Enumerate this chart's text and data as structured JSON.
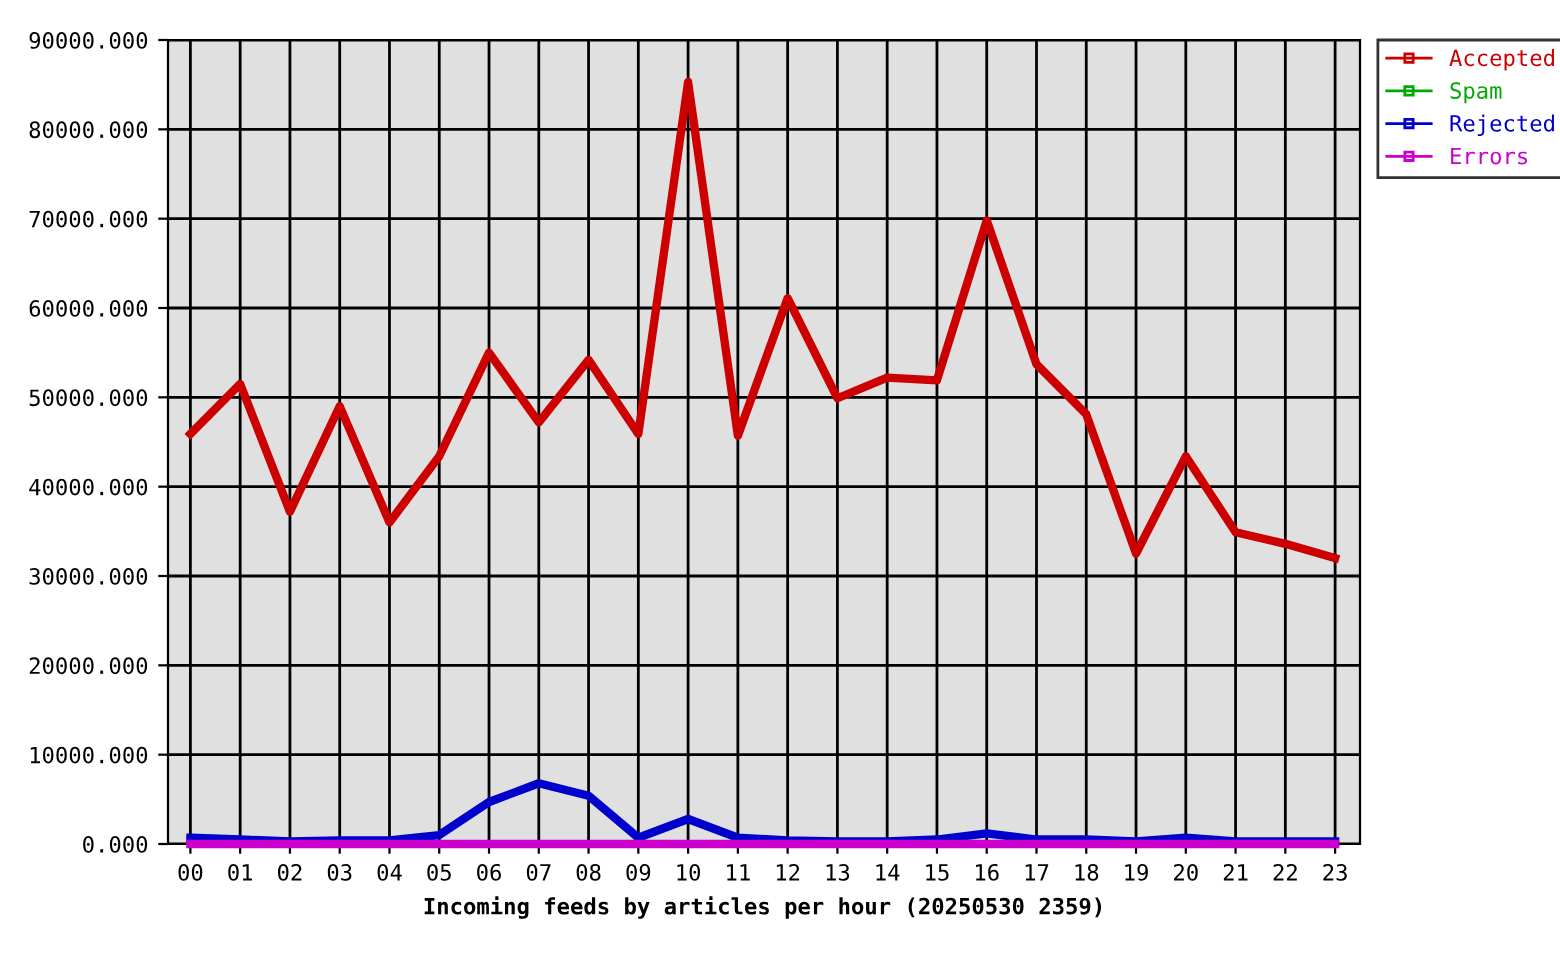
{
  "chart_data": {
    "type": "line",
    "xlabel": "Incoming feeds by articles per hour (20250530 2359)",
    "categories": [
      "00",
      "01",
      "02",
      "03",
      "04",
      "05",
      "06",
      "07",
      "08",
      "09",
      "10",
      "11",
      "12",
      "13",
      "14",
      "15",
      "16",
      "17",
      "18",
      "19",
      "20",
      "21",
      "22",
      "23"
    ],
    "series": [
      {
        "name": "Accepted",
        "color": "#cc0000",
        "values": [
          45900,
          51500,
          37200,
          49000,
          36000,
          43400,
          55000,
          47200,
          54200,
          45900,
          85300,
          45700,
          61100,
          49900,
          52200,
          51900,
          69800,
          53700,
          48100,
          32500,
          43400,
          34900,
          33600,
          32000
        ]
      },
      {
        "name": "Spam",
        "color": "#00aa00",
        "values": [
          null,
          null,
          null,
          null,
          null,
          null,
          null,
          null,
          null,
          null,
          null,
          null,
          null,
          null,
          null,
          null,
          null,
          null,
          null,
          null,
          null,
          null,
          null,
          null
        ]
      },
      {
        "name": "Rejected",
        "color": "#0000cc",
        "values": [
          700,
          500,
          300,
          400,
          400,
          1000,
          4700,
          6800,
          5400,
          700,
          2800,
          700,
          400,
          300,
          300,
          500,
          1200,
          500,
          500,
          300,
          700,
          300,
          300,
          300
        ]
      },
      {
        "name": "Errors",
        "color": "#cc00cc",
        "values": [
          0,
          0,
          0,
          0,
          0,
          0,
          0,
          0,
          0,
          0,
          0,
          0,
          0,
          0,
          0,
          0,
          0,
          0,
          0,
          0,
          0,
          0,
          0,
          0
        ]
      }
    ],
    "ylim": [
      0,
      90000
    ],
    "yticks": [
      {
        "value": 0,
        "label": "0.000"
      },
      {
        "value": 10000,
        "label": "10000.000"
      },
      {
        "value": 20000,
        "label": "20000.000"
      },
      {
        "value": 30000,
        "label": "30000.000"
      },
      {
        "value": 40000,
        "label": "40000.000"
      },
      {
        "value": 50000,
        "label": "50000.000"
      },
      {
        "value": 60000,
        "label": "60000.000"
      },
      {
        "value": 70000,
        "label": "70000.000"
      },
      {
        "value": 80000,
        "label": "80000.000"
      },
      {
        "value": 90000,
        "label": "90000.000"
      }
    ],
    "grid": true,
    "legend": "right"
  }
}
